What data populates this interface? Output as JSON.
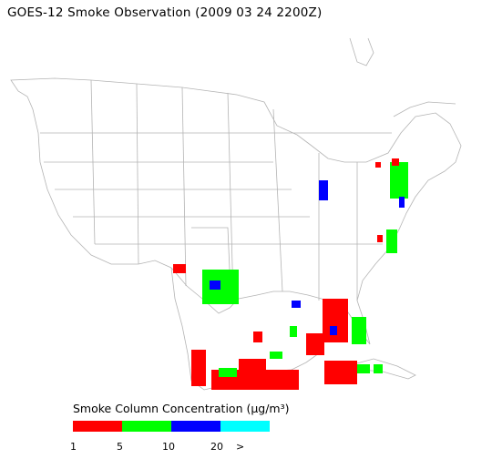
{
  "title": "GOES-12 Smoke Observation (2009 03 24  2200Z)",
  "legend": {
    "title": "Smoke Column Concentration (μg/m³)",
    "bins": [
      {
        "color": "#ff0000"
      },
      {
        "color": "#00ff00"
      },
      {
        "color": "#0000ff"
      },
      {
        "color": "#00ffff"
      }
    ],
    "ticks": [
      "1",
      "5",
      "10",
      "20",
      ">"
    ]
  },
  "smoke_regions": [
    {
      "area": "upper-michigan-lake",
      "level": 3
    },
    {
      "area": "new-england",
      "level": 2
    },
    {
      "area": "mid-atlantic",
      "level": 2
    },
    {
      "area": "central-texas",
      "level": 2
    },
    {
      "area": "florida",
      "level": 1
    },
    {
      "area": "gulf-of-mexico-south",
      "level": 1
    },
    {
      "area": "yucatan",
      "level": 1
    }
  ]
}
